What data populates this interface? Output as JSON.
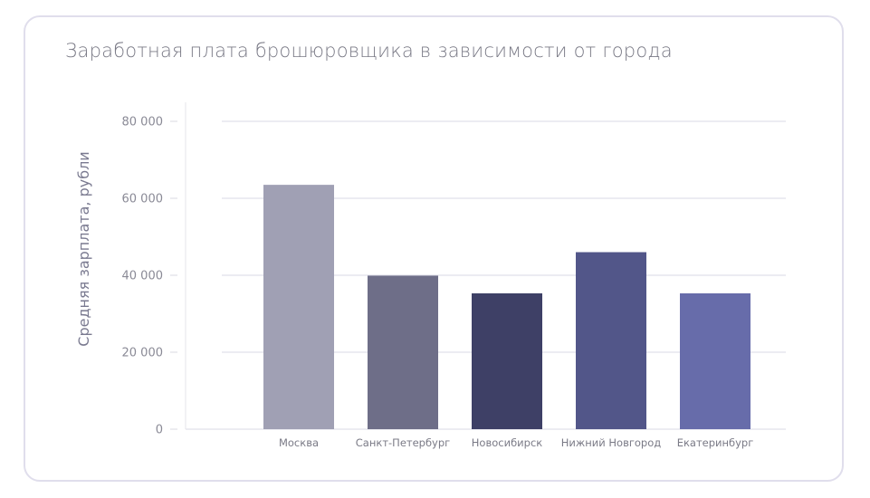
{
  "chart_data": {
    "type": "bar",
    "title": "Заработная плата брошюровщика в зависимости от города",
    "xlabel": "",
    "ylabel": "Средняя зарплата, рубли",
    "categories": [
      "Москва",
      "Санкт-Петербург",
      "Новосибирск",
      "Нижний Новгород",
      "Екатеринбург"
    ],
    "values": [
      63500,
      39900,
      35300,
      46000,
      35300
    ],
    "colors": [
      "#a0a0b4",
      "#6e6e88",
      "#3e4066",
      "#525689",
      "#676caa"
    ],
    "ylim": [
      0,
      80000
    ],
    "yticks": [
      0,
      20000,
      40000,
      60000,
      80000
    ],
    "ytick_labels": [
      "0",
      "20 000",
      "40 000",
      "60 000",
      "80 000"
    ],
    "grid": true,
    "legend": "none"
  }
}
